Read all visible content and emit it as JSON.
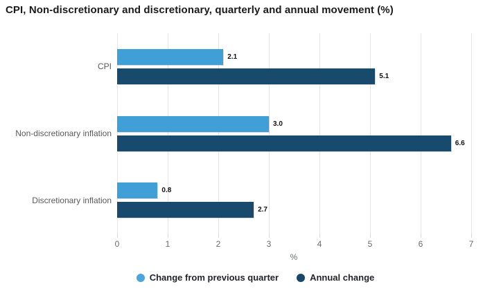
{
  "title": "CPI, Non-discretionary and discretionary, quarterly and annual movement (%)",
  "colors": {
    "series_light": "#3f9fd6",
    "series_dark": "#174a6c",
    "legend_dot_light": "#4da5db",
    "legend_dot_dark": "#17486b",
    "gridline": "#e6e6e6",
    "axis_text": "#666b70",
    "category_text": "#595959"
  },
  "chart_data": {
    "type": "bar",
    "orientation": "horizontal",
    "title": "CPI, Non-discretionary and discretionary, quarterly and annual movement (%)",
    "categories": [
      "CPI",
      "Non-discretionary inflation",
      "Discretionary inflation"
    ],
    "series": [
      {
        "name": "Change from previous quarter",
        "color": "#3f9fd6",
        "dot_color": "#4da5db",
        "values": [
          2.1,
          3.0,
          0.8
        ]
      },
      {
        "name": "Annual change",
        "color": "#174a6c",
        "dot_color": "#17486b",
        "values": [
          5.1,
          6.6,
          2.7
        ]
      }
    ],
    "xlabel": "%",
    "xlim": [
      0,
      7
    ],
    "xticks": [
      0,
      1,
      2,
      3,
      4,
      5,
      6,
      7
    ],
    "grid": true,
    "legend_position": "bottom"
  }
}
